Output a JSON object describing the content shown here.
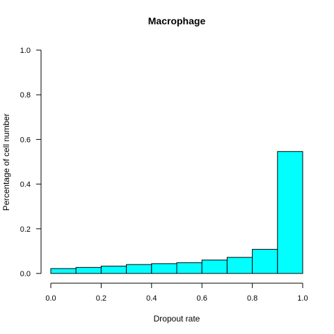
{
  "chart_data": {
    "type": "bar",
    "title": "Macrophage",
    "xlabel": "Dropout rate",
    "ylabel": "Percentage of cell number",
    "xlim": [
      0,
      1
    ],
    "ylim": [
      0,
      1
    ],
    "xticks": [
      "0.0",
      "0.2",
      "0.4",
      "0.6",
      "0.8",
      "1.0"
    ],
    "yticks": [
      "0.0",
      "0.2",
      "0.4",
      "0.6",
      "0.8",
      "1.0"
    ],
    "bins": [
      {
        "from": 0.0,
        "to": 0.1,
        "value": 0.022
      },
      {
        "from": 0.1,
        "to": 0.2,
        "value": 0.027
      },
      {
        "from": 0.2,
        "to": 0.3,
        "value": 0.033
      },
      {
        "from": 0.3,
        "to": 0.4,
        "value": 0.04
      },
      {
        "from": 0.4,
        "to": 0.5,
        "value": 0.044
      },
      {
        "from": 0.5,
        "to": 0.6,
        "value": 0.048
      },
      {
        "from": 0.6,
        "to": 0.7,
        "value": 0.06
      },
      {
        "from": 0.7,
        "to": 0.8,
        "value": 0.072
      },
      {
        "from": 0.8,
        "to": 0.9,
        "value": 0.108
      },
      {
        "from": 0.9,
        "to": 1.0,
        "value": 0.546
      }
    ],
    "bar_color": "#00ffff",
    "grid": false,
    "legend": "none"
  }
}
